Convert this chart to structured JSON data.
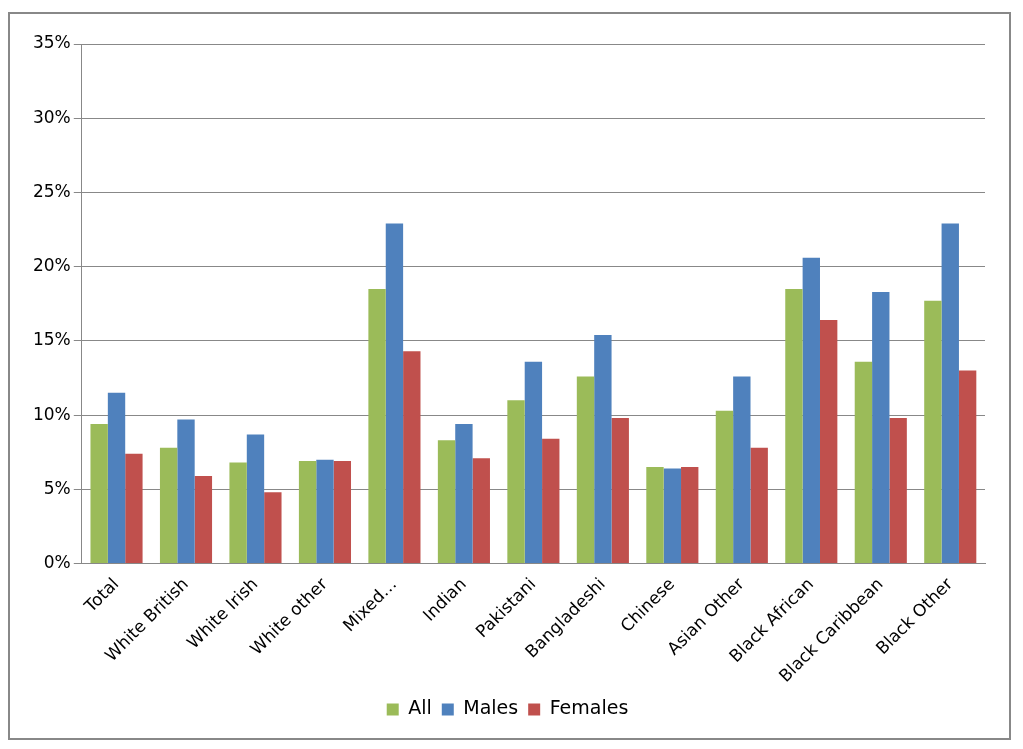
{
  "chart_data": {
    "type": "bar",
    "categories": [
      "Total",
      "White British",
      "White Irish",
      "White other",
      "Mixed…",
      "Indian",
      "Pakistani",
      "Bangladeshi",
      "Chinese",
      "Asian Other",
      "Black African",
      "Black Caribbean",
      "Black Other"
    ],
    "series": [
      {
        "name": "All",
        "color": "#9bbb59",
        "values": [
          9.4,
          7.8,
          6.8,
          6.9,
          18.5,
          8.3,
          11,
          12.6,
          6.5,
          10.3,
          18.5,
          13.6,
          17.7
        ]
      },
      {
        "name": "Males",
        "color": "#4f81bd",
        "values": [
          11.5,
          9.7,
          8.7,
          7,
          22.9,
          9.4,
          13.6,
          15.4,
          6.4,
          12.6,
          20.6,
          18.3,
          22.9
        ]
      },
      {
        "name": "Females",
        "color": "#c0504d",
        "values": [
          7.4,
          5.9,
          4.8,
          6.9,
          14.3,
          7.1,
          8.4,
          9.8,
          6.5,
          7.8,
          16.4,
          9.8,
          13
        ]
      }
    ],
    "ylim": [
      0,
      35
    ],
    "yticks": [
      {
        "value": 0,
        "label": "0%"
      },
      {
        "value": 5,
        "label": "5%"
      },
      {
        "value": 10,
        "label": "10%"
      },
      {
        "value": 15,
        "label": "15%"
      },
      {
        "value": 20,
        "label": "20%"
      },
      {
        "value": 25,
        "label": "25%"
      },
      {
        "value": 30,
        "label": "30%"
      },
      {
        "value": 35,
        "label": "35%"
      }
    ],
    "grid": "y",
    "legend": "bottom"
  }
}
